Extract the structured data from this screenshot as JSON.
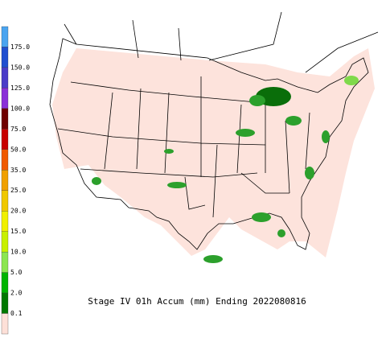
{
  "title": "Stage IV 01h Accum (mm) Ending 2022080816",
  "legend": {
    "labels": [
      "175.0",
      "150.0",
      "125.0",
      "100.0",
      "75.0",
      "50.0",
      "35.0",
      "25.0",
      "20.0",
      "15.0",
      "10.0",
      "5.0",
      "2.0",
      "0.1"
    ],
    "colors": [
      "#4aa4f0",
      "#1f4fd0",
      "#4a3cc8",
      "#8a2fd8",
      "#6e0000",
      "#c80000",
      "#f05a00",
      "#f0a000",
      "#f0c800",
      "#f0f000",
      "#c8f000",
      "#8ce650",
      "#00b400",
      "#007800",
      "#fde0d8"
    ]
  }
}
